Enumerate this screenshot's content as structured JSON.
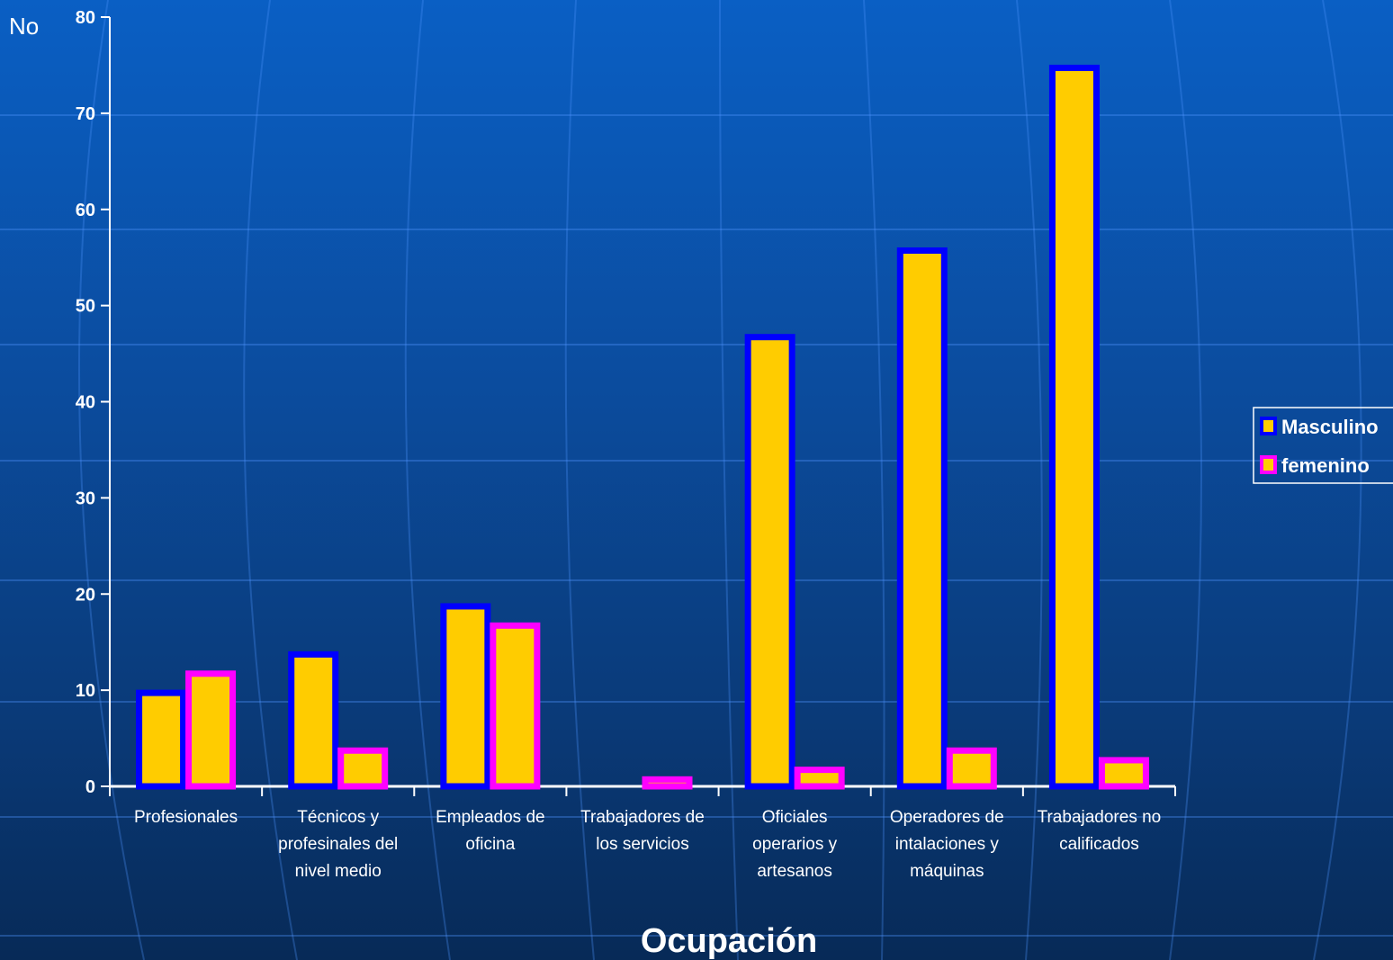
{
  "chart_data": {
    "type": "bar",
    "title": "",
    "xlabel": "Ocupación",
    "ylabel": "No",
    "ylim": [
      0,
      80
    ],
    "yticks": [
      0,
      10,
      20,
      30,
      40,
      50,
      60,
      70,
      80
    ],
    "grid": false,
    "legend_position": "right",
    "categories": [
      [
        "Profesionales"
      ],
      [
        "Técnicos y",
        "profesinales del",
        "nivel medio"
      ],
      [
        "Empleados de",
        "oficina"
      ],
      [
        "Trabajadores de",
        "los servicios"
      ],
      [
        "Oficiales",
        "operarios y",
        "artesanos"
      ],
      [
        "Operadores de",
        "intalaciones y",
        "máquinas"
      ],
      [
        "Trabajadores no",
        "calificados"
      ]
    ],
    "series": [
      {
        "name": "Masculino",
        "values": [
          10,
          14,
          19,
          0,
          47,
          56,
          75
        ],
        "fill": "#ffcc00",
        "border": "#0000ff"
      },
      {
        "name": "femenino",
        "values": [
          12,
          4,
          17,
          1,
          2,
          4,
          3
        ],
        "fill": "#ffcc00",
        "border": "#ff00ff"
      }
    ]
  },
  "colors": {
    "axis": "#ffffff",
    "text": "#ffffff"
  }
}
